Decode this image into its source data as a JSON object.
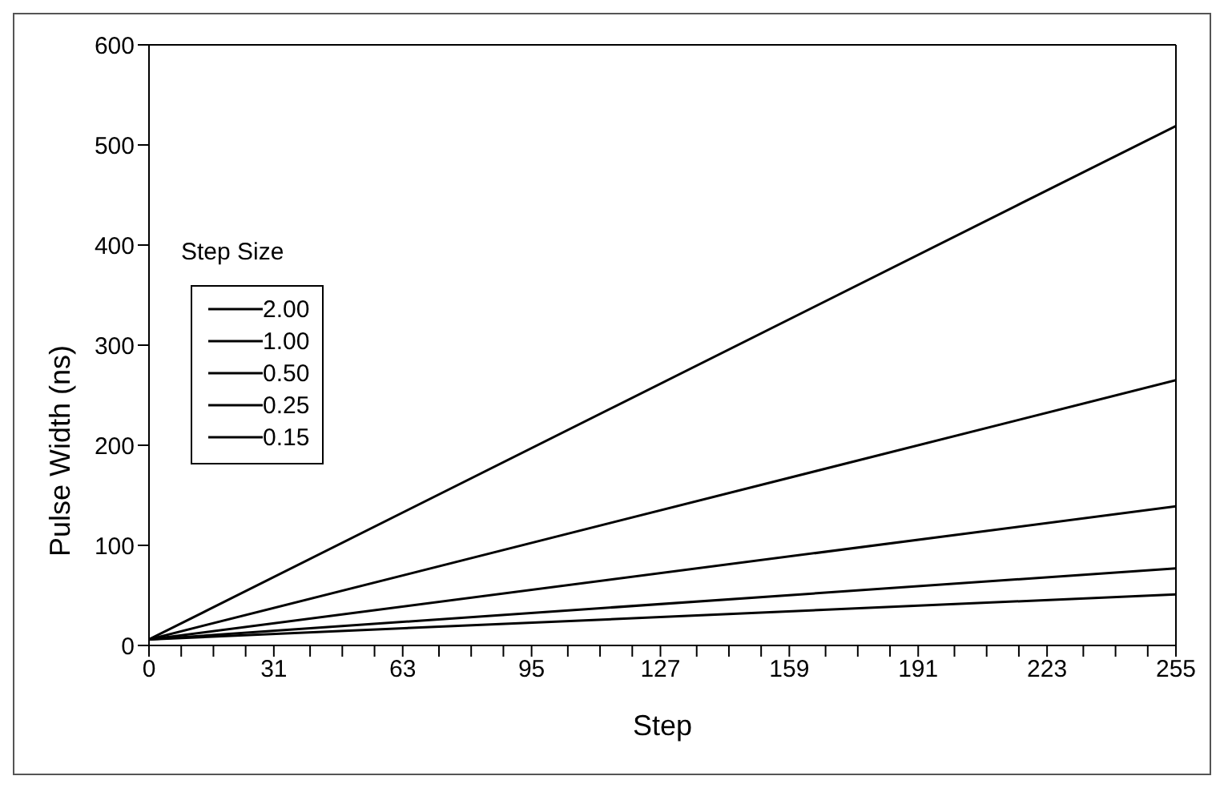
{
  "chart_data": {
    "type": "line",
    "xlabel": "Step",
    "ylabel": "Pulse Width (ns)",
    "legend_title": "Step Size",
    "x": [
      0,
      255
    ],
    "series": [
      {
        "name": "2.00",
        "color": "#000000",
        "values": [
          6,
          519
        ]
      },
      {
        "name": "1.00",
        "color": "#000000",
        "values": [
          6,
          265
        ]
      },
      {
        "name": "0.50",
        "color": "#000000",
        "values": [
          6,
          139
        ]
      },
      {
        "name": "0.25",
        "color": "#000000",
        "values": [
          6,
          77
        ]
      },
      {
        "name": "0.15",
        "color": "#000000",
        "values": [
          6,
          51
        ]
      }
    ],
    "xlim": [
      0,
      255
    ],
    "xticks": [
      0,
      {
        "value": 8,
        "label": null
      },
      {
        "value": 16,
        "label": null
      },
      {
        "value": 24,
        "label": null
      },
      31,
      {
        "value": 40,
        "label": null
      },
      {
        "value": 48,
        "label": null
      },
      {
        "value": 56,
        "label": null
      },
      63,
      {
        "value": 72,
        "label": null
      },
      {
        "value": 80,
        "label": null
      },
      {
        "value": 88,
        "label": null
      },
      95,
      {
        "value": 104,
        "label": null
      },
      {
        "value": 112,
        "label": null
      },
      {
        "value": 120,
        "label": null
      },
      127,
      {
        "value": 136,
        "label": null
      },
      {
        "value": 144,
        "label": null
      },
      {
        "value": 152,
        "label": null
      },
      159,
      {
        "value": 168,
        "label": null
      },
      {
        "value": 176,
        "label": null
      },
      {
        "value": 184,
        "label": null
      },
      191,
      {
        "value": 200,
        "label": null
      },
      {
        "value": 208,
        "label": null
      },
      {
        "value": 216,
        "label": null
      },
      223,
      {
        "value": 232,
        "label": null
      },
      {
        "value": 240,
        "label": null
      },
      {
        "value": 248,
        "label": null
      },
      255
    ],
    "ylim": [
      0,
      600
    ],
    "yticks": [
      0,
      100,
      200,
      300,
      400,
      500,
      600
    ],
    "grid": false,
    "legend": "left",
    "marker": "none",
    "line_style": "solid"
  }
}
